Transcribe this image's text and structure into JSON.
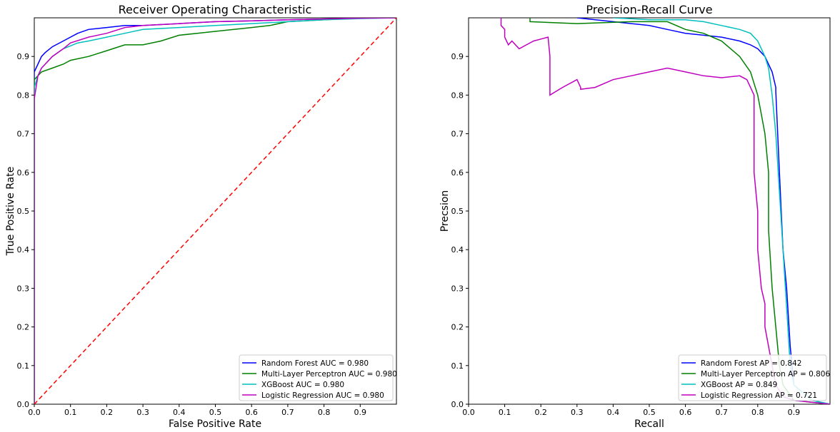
{
  "chart_data": [
    {
      "type": "line",
      "title": "Receiver Operating Characteristic",
      "xlabel": "False Positive Rate",
      "ylabel": "True Positive Rate",
      "xlim": [
        0,
        1
      ],
      "ylim": [
        0,
        1
      ],
      "xticks": [
        "0.0",
        "0.1",
        "0.2",
        "0.3",
        "0.4",
        "0.5",
        "0.6",
        "0.7",
        "0.8",
        "0.9"
      ],
      "yticks": [
        "0.0",
        "0.1",
        "0.2",
        "0.3",
        "0.4",
        "0.5",
        "0.6",
        "0.7",
        "0.8",
        "0.9"
      ],
      "grid": false,
      "legend_position": "lower-right",
      "series": [
        {
          "name": "Random Forest AUC = 0.980",
          "color": "#0000ff",
          "x": [
            0,
            0,
            0.005,
            0.01,
            0.02,
            0.03,
            0.05,
            0.08,
            0.12,
            0.15,
            0.2,
            0.25,
            0.3,
            0.4,
            0.5,
            0.6,
            0.7,
            0.8,
            0.9,
            1.0
          ],
          "y": [
            0,
            0.86,
            0.87,
            0.88,
            0.9,
            0.91,
            0.925,
            0.94,
            0.96,
            0.97,
            0.975,
            0.98,
            0.98,
            0.985,
            0.99,
            0.992,
            0.995,
            0.997,
            0.999,
            1.0
          ]
        },
        {
          "name": "Multi-Layer Perceptron AUC = 0.980",
          "color": "#008000",
          "x": [
            0,
            0,
            0.01,
            0.02,
            0.05,
            0.08,
            0.1,
            0.15,
            0.2,
            0.25,
            0.3,
            0.35,
            0.4,
            0.45,
            0.5,
            0.6,
            0.65,
            0.7,
            0.8,
            0.9,
            1.0
          ],
          "y": [
            0,
            0.84,
            0.85,
            0.86,
            0.87,
            0.88,
            0.89,
            0.9,
            0.915,
            0.93,
            0.93,
            0.94,
            0.955,
            0.96,
            0.965,
            0.975,
            0.98,
            0.99,
            0.995,
            0.999,
            1.0
          ]
        },
        {
          "name": "XGBoost AUC = 0.980",
          "color": "#00bfbf",
          "x": [
            0,
            0,
            0.01,
            0.02,
            0.05,
            0.08,
            0.12,
            0.15,
            0.2,
            0.25,
            0.3,
            0.4,
            0.5,
            0.6,
            0.7,
            0.8,
            0.9,
            1.0
          ],
          "y": [
            0,
            0.82,
            0.85,
            0.87,
            0.9,
            0.92,
            0.935,
            0.94,
            0.95,
            0.96,
            0.97,
            0.975,
            0.98,
            0.985,
            0.99,
            0.995,
            0.998,
            1.0
          ]
        },
        {
          "name": "Logistic Regression AUC = 0.980",
          "color": "#bf00bf",
          "x": [
            0,
            0,
            0.005,
            0.01,
            0.02,
            0.05,
            0.08,
            0.1,
            0.15,
            0.2,
            0.25,
            0.3,
            0.4,
            0.5,
            0.6,
            0.7,
            0.8,
            0.9,
            1.0
          ],
          "y": [
            0,
            0.79,
            0.82,
            0.85,
            0.87,
            0.9,
            0.92,
            0.935,
            0.95,
            0.96,
            0.975,
            0.98,
            0.985,
            0.99,
            0.992,
            0.995,
            0.997,
            0.999,
            1.0
          ]
        },
        {
          "name": "",
          "color": "#ff0000",
          "dashed": true,
          "x": [
            0,
            1
          ],
          "y": [
            0,
            1
          ]
        }
      ]
    },
    {
      "type": "line",
      "title": "Precision-Recall Curve",
      "xlabel": "Recall",
      "ylabel": "Precsion",
      "xlim": [
        0,
        1
      ],
      "ylim": [
        0,
        1
      ],
      "xticks": [
        "0.0",
        "0.1",
        "0.2",
        "0.3",
        "0.4",
        "0.5",
        "0.6",
        "0.7",
        "0.8",
        "0.9"
      ],
      "yticks": [
        "0.0",
        "0.1",
        "0.2",
        "0.3",
        "0.4",
        "0.5",
        "0.6",
        "0.7",
        "0.8",
        "0.9"
      ],
      "grid": false,
      "legend_position": "lower-right",
      "series": [
        {
          "name": "Random Forest AP = 0.842",
          "color": "#0000ff",
          "x": [
            0.3,
            0.4,
            0.45,
            0.5,
            0.55,
            0.6,
            0.65,
            0.7,
            0.75,
            0.78,
            0.8,
            0.82,
            0.84,
            0.85,
            0.85,
            0.86,
            0.87,
            0.88,
            0.89,
            0.9,
            0.95,
            1.0
          ],
          "y": [
            1.0,
            0.99,
            0.985,
            0.98,
            0.97,
            0.96,
            0.955,
            0.95,
            0.94,
            0.93,
            0.92,
            0.9,
            0.86,
            0.82,
            0.81,
            0.6,
            0.4,
            0.3,
            0.15,
            0.05,
            0.01,
            0.0
          ]
        },
        {
          "name": "Multi-Layer Perceptron AP = 0.806",
          "color": "#008000",
          "x": [
            0.17,
            0.17,
            0.3,
            0.45,
            0.55,
            0.6,
            0.65,
            0.7,
            0.75,
            0.78,
            0.8,
            0.81,
            0.82,
            0.83,
            0.83,
            0.84,
            0.85,
            0.86,
            0.87,
            0.9,
            1.0
          ],
          "y": [
            1.0,
            0.99,
            0.985,
            0.99,
            0.99,
            0.97,
            0.96,
            0.94,
            0.9,
            0.86,
            0.8,
            0.75,
            0.7,
            0.6,
            0.45,
            0.3,
            0.2,
            0.1,
            0.05,
            0.01,
            0.0
          ]
        },
        {
          "name": "XGBoost AP = 0.849",
          "color": "#00bfbf",
          "x": [
            0.4,
            0.5,
            0.6,
            0.65,
            0.7,
            0.75,
            0.78,
            0.8,
            0.82,
            0.83,
            0.84,
            0.85,
            0.86,
            0.87,
            0.88,
            0.89,
            0.9,
            0.95,
            1.0
          ],
          "y": [
            1.0,
            0.995,
            0.995,
            0.99,
            0.98,
            0.97,
            0.96,
            0.94,
            0.9,
            0.87,
            0.8,
            0.7,
            0.55,
            0.4,
            0.25,
            0.1,
            0.05,
            0.01,
            0.0
          ]
        },
        {
          "name": "Logistic Regression AP = 0.721",
          "color": "#bf00bf",
          "x": [
            0.09,
            0.09,
            0.1,
            0.1,
            0.11,
            0.12,
            0.14,
            0.16,
            0.18,
            0.2,
            0.22,
            0.225,
            0.225,
            0.26,
            0.3,
            0.31,
            0.31,
            0.35,
            0.4,
            0.45,
            0.5,
            0.55,
            0.6,
            0.65,
            0.7,
            0.75,
            0.77,
            0.78,
            0.79,
            0.79,
            0.8,
            0.8,
            0.81,
            0.82,
            0.82,
            0.84,
            0.85,
            0.87,
            0.9,
            1.0
          ],
          "y": [
            1.0,
            0.98,
            0.97,
            0.95,
            0.93,
            0.94,
            0.92,
            0.93,
            0.94,
            0.945,
            0.95,
            0.9,
            0.8,
            0.82,
            0.84,
            0.82,
            0.815,
            0.82,
            0.84,
            0.85,
            0.86,
            0.87,
            0.86,
            0.85,
            0.845,
            0.85,
            0.84,
            0.82,
            0.8,
            0.6,
            0.5,
            0.4,
            0.3,
            0.26,
            0.2,
            0.1,
            0.05,
            0.02,
            0.01,
            0.0
          ]
        }
      ]
    }
  ]
}
